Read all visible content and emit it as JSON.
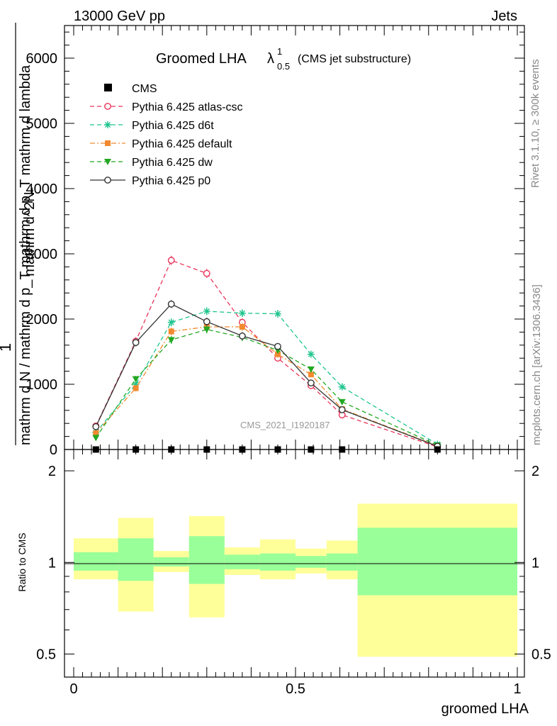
{
  "header": {
    "left": "13000 GeV pp",
    "right": "Jets"
  },
  "side_texts": {
    "rivet": "Rivet 3.1.10, ≥ 300k events",
    "mcplots": "mcplots.cern.ch [arXiv:1306.3436]"
  },
  "chart_data": {
    "type": "line",
    "title_main": "Groomed LHA",
    "title_lambda": "λ",
    "title_sup": "1",
    "title_sub": "0.5",
    "title_note": "(CMS jet substructure)",
    "ylabel_lines": [
      "mathrm d",
      "mathrm d N / mathrm d p"
    ],
    "ylabel_1": "1",
    "ylabel_full": "mathrm d N / mathrm d p_T mathrm d lambda",
    "ylabel_prefix": "1",
    "ylabel_denominator": "mathrm d N / mathrm d p",
    "ylabel_numerator": "mathrm d",
    "ylabel_top": "mathrm d^2N",
    "ylabel_bottom": "mathrm d N / mathrm d p_T mathrm d p_T mathrm d lambda",
    "xlabel": "groomed LHA",
    "ratio_ylabel": "Ratio to CMS",
    "analysis_label": "CMS_2021_I1920187",
    "main_yticks": [
      "0",
      "1000",
      "2000",
      "3000",
      "4000",
      "5000",
      "6000"
    ],
    "main_ylim": [
      0,
      6500
    ],
    "xlim": [
      -0.02,
      1.0
    ],
    "xticks": [
      "0",
      "0.5",
      "1"
    ],
    "ratio_yticks_left": [
      "0.5",
      "1",
      "2"
    ],
    "ratio_yticks_right": [
      "0.5",
      "1",
      "2"
    ],
    "ratio_ylim": [
      0.42,
      2.35
    ],
    "ratio_log": true,
    "bins": [
      {
        "lo": 0.0,
        "hi": 0.1
      },
      {
        "lo": 0.1,
        "hi": 0.18
      },
      {
        "lo": 0.18,
        "hi": 0.26
      },
      {
        "lo": 0.26,
        "hi": 0.34
      },
      {
        "lo": 0.34,
        "hi": 0.42
      },
      {
        "lo": 0.42,
        "hi": 0.5
      },
      {
        "lo": 0.5,
        "hi": 0.57
      },
      {
        "lo": 0.57,
        "hi": 0.64
      },
      {
        "lo": 0.64,
        "hi": 1.0
      }
    ],
    "cms": {
      "name": "CMS",
      "x": [
        0.05,
        0.14,
        0.22,
        0.3,
        0.38,
        0.46,
        0.535,
        0.605,
        0.82
      ],
      "y": [
        0,
        0,
        0,
        0,
        0,
        0,
        0,
        0,
        0
      ]
    },
    "band_green": [
      [
        0.94,
        1.08
      ],
      [
        0.87,
        1.2
      ],
      [
        0.97,
        1.04
      ],
      [
        0.85,
        1.22
      ],
      [
        0.95,
        1.06
      ],
      [
        0.94,
        1.07
      ],
      [
        0.96,
        1.05
      ],
      [
        0.94,
        1.07
      ],
      [
        0.78,
        1.3
      ]
    ],
    "band_yellow": [
      [
        0.88,
        1.2
      ],
      [
        0.69,
        1.4
      ],
      [
        0.93,
        1.09
      ],
      [
        0.66,
        1.42
      ],
      [
        0.91,
        1.12
      ],
      [
        0.88,
        1.19
      ],
      [
        0.92,
        1.11
      ],
      [
        0.88,
        1.18
      ],
      [
        0.49,
        1.56
      ]
    ],
    "series": [
      {
        "name": "Pythia 6.425 atlas-csc",
        "color": "#e8345a",
        "marker": "circle-open",
        "dash": "6,4",
        "x": [
          0.05,
          0.14,
          0.22,
          0.3,
          0.38,
          0.46,
          0.535,
          0.605,
          0.82
        ],
        "y": [
          360,
          1660,
          2900,
          2700,
          1950,
          1400,
          980,
          530,
          40
        ],
        "err": [
          40,
          60,
          70,
          70,
          60,
          50,
          40,
          30,
          10
        ]
      },
      {
        "name": "Pythia 6.425 d6t",
        "color": "#1ec48e",
        "marker": "star",
        "dash": "6,4",
        "x": [
          0.05,
          0.14,
          0.22,
          0.3,
          0.38,
          0.46,
          0.535,
          0.605,
          0.82
        ],
        "y": [
          260,
          1000,
          1950,
          2120,
          2090,
          2080,
          1460,
          960,
          80
        ],
        "err": [
          30,
          50,
          60,
          60,
          60,
          60,
          50,
          40,
          10
        ]
      },
      {
        "name": "Pythia 6.425 default",
        "color": "#f28a30",
        "marker": "square",
        "dash": "7,3,2,3",
        "x": [
          0.05,
          0.14,
          0.22,
          0.3,
          0.38,
          0.46,
          0.535,
          0.605,
          0.82
        ],
        "y": [
          250,
          940,
          1810,
          1880,
          1880,
          1460,
          1150,
          620,
          55
        ],
        "err": [
          30,
          50,
          60,
          60,
          60,
          50,
          40,
          30,
          10
        ]
      },
      {
        "name": "Pythia 6.425 dw",
        "color": "#22a822",
        "marker": "triangle-down",
        "dash": "6,4",
        "x": [
          0.05,
          0.14,
          0.22,
          0.3,
          0.38,
          0.46,
          0.535,
          0.605,
          0.82
        ],
        "y": [
          180,
          1080,
          1680,
          1840,
          1720,
          1520,
          1230,
          730,
          65
        ],
        "err": [
          30,
          50,
          60,
          60,
          60,
          50,
          40,
          30,
          10
        ]
      },
      {
        "name": "Pythia 6.425 p0",
        "color": "#333333",
        "marker": "circle-open",
        "dash": "",
        "x": [
          0.05,
          0.14,
          0.22,
          0.3,
          0.38,
          0.46,
          0.535,
          0.605,
          0.82
        ],
        "y": [
          350,
          1640,
          2230,
          1960,
          1740,
          1580,
          1020,
          610,
          50
        ],
        "err": [
          40,
          60,
          60,
          60,
          60,
          50,
          40,
          30,
          10
        ]
      }
    ]
  }
}
